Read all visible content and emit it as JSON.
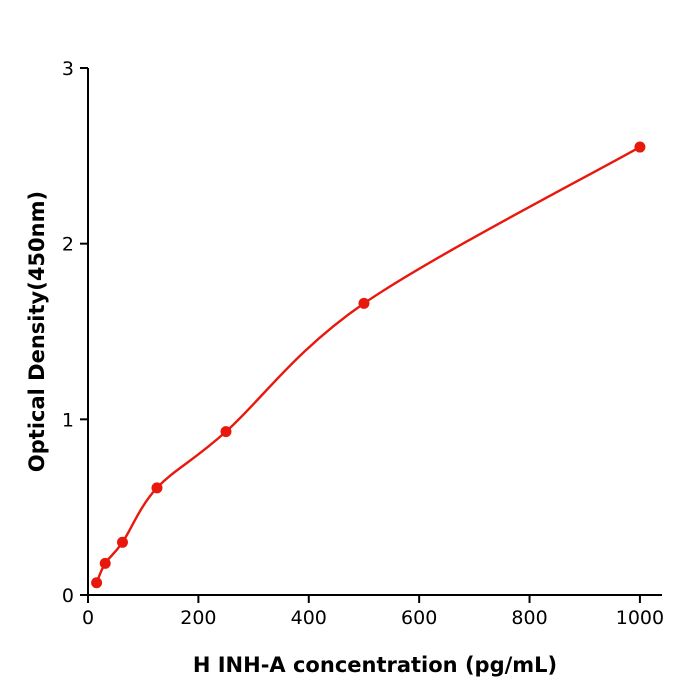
{
  "chart_data": {
    "type": "scatter",
    "title": "",
    "xlabel": "H  INH-A concentration (pg/mL)",
    "ylabel": "Optical Density(450nm)",
    "x": [
      15.6,
      31.2,
      62.5,
      125,
      250,
      500,
      1000
    ],
    "y": [
      0.07,
      0.18,
      0.3,
      0.61,
      0.93,
      1.66,
      2.55
    ],
    "xlim": [
      0,
      1040
    ],
    "ylim": [
      0,
      3
    ],
    "xticks": [
      0,
      200,
      400,
      600,
      800,
      1000
    ],
    "yticks": [
      0,
      1,
      2,
      3
    ],
    "grid": false,
    "legend": "none",
    "curve_type": "smooth fit through points",
    "point_color": "#e8190c",
    "line_color": "#e8190c",
    "axis_color": "#000000"
  }
}
